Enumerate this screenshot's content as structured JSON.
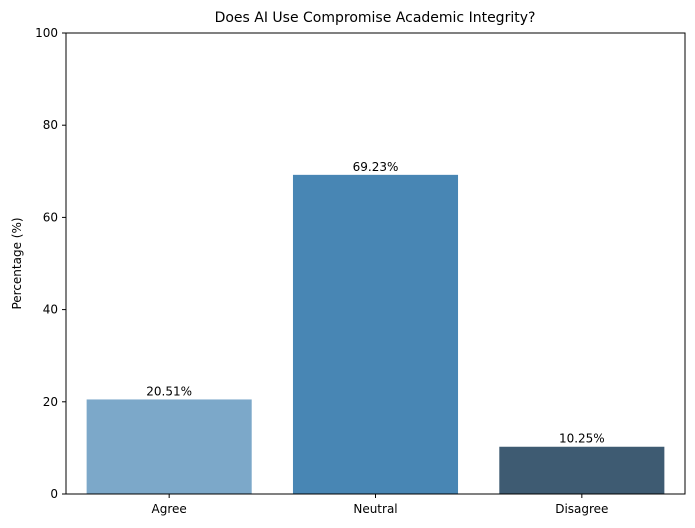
{
  "chart_data": {
    "type": "bar",
    "title": "Does AI Use Compromise Academic Integrity?",
    "xlabel": "",
    "ylabel": "Percentage (%)",
    "categories": [
      "Agree",
      "Neutral",
      "Disagree"
    ],
    "values": [
      20.51,
      69.23,
      10.25
    ],
    "data_labels": [
      "20.51%",
      "69.23%",
      "10.25%"
    ],
    "colors": [
      "#7ca8c9",
      "#4886b4",
      "#3e5b72"
    ],
    "ylim": [
      0,
      100
    ],
    "yticks": [
      0,
      20,
      40,
      60,
      80,
      100
    ],
    "ytick_labels": [
      "0",
      "20",
      "40",
      "60",
      "80",
      "100"
    ],
    "grid": false,
    "legend": "none"
  }
}
